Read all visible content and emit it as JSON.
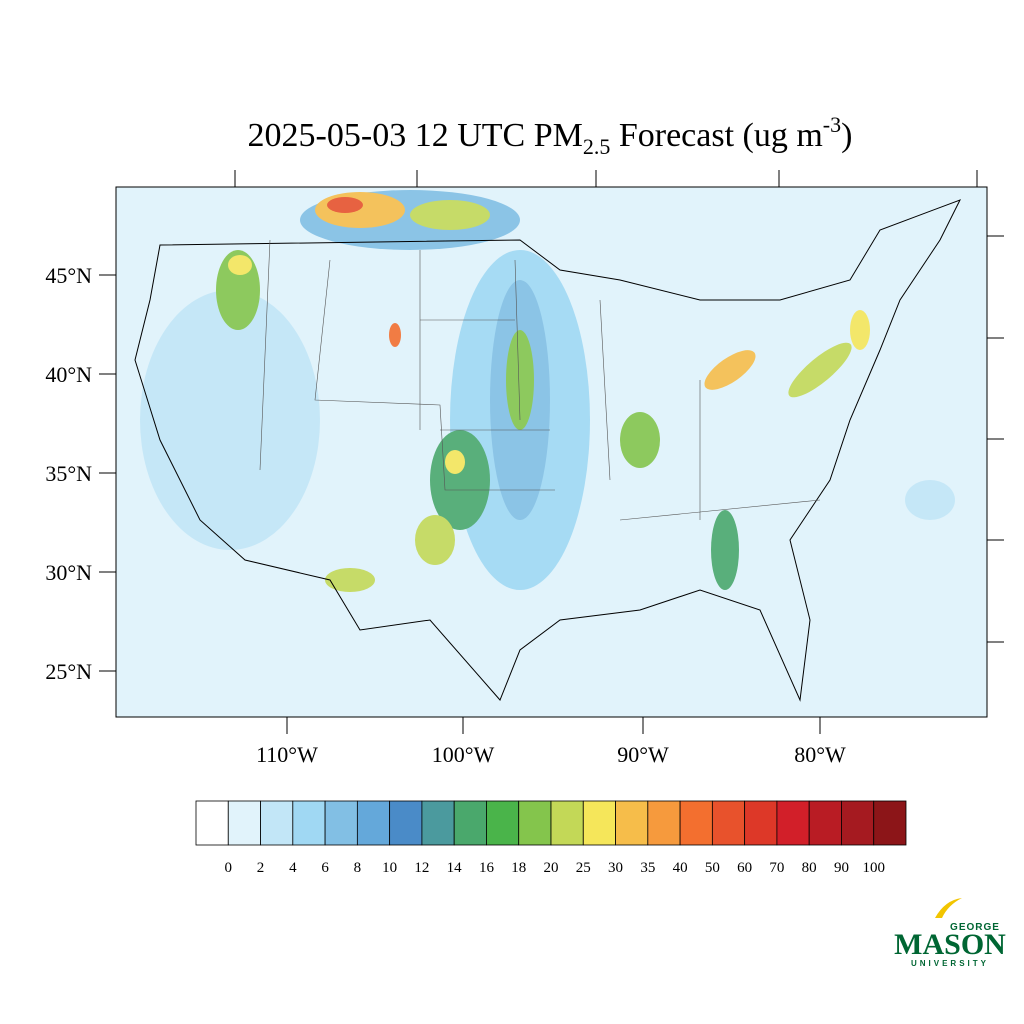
{
  "title": {
    "main": "2025-05-03 12 UTC PM",
    "sub": "2.5",
    "rest": " Forecast (ug m",
    "sup": "-3",
    "end": ")"
  },
  "map": {
    "lat_labels": [
      "45°N",
      "40°N",
      "35°N",
      "30°N",
      "25°N"
    ],
    "lon_labels": [
      "110°W",
      "100°W",
      "90°W",
      "80°W"
    ]
  },
  "colorbar": {
    "levels": [
      0,
      2,
      4,
      6,
      8,
      10,
      12,
      14,
      16,
      18,
      20,
      25,
      30,
      35,
      40,
      50,
      60,
      70,
      80,
      90,
      100
    ],
    "colors": [
      "#ffffff",
      "#e1f3fb",
      "#c2e6f7",
      "#a0d8f3",
      "#82bfe4",
      "#64a8da",
      "#4a8bc8",
      "#4b9a9e",
      "#4aa86c",
      "#4ab44a",
      "#84c54c",
      "#c3d857",
      "#f5e65a",
      "#f6bd4a",
      "#f69a3d",
      "#f36f2f",
      "#e8522c",
      "#dd3828",
      "#d21f29",
      "#b91c24",
      "#a51a20",
      "#8c1518"
    ]
  },
  "logo": {
    "top": "GEORGE",
    "main": "MASON",
    "bottom": "UNIVERSITY"
  }
}
